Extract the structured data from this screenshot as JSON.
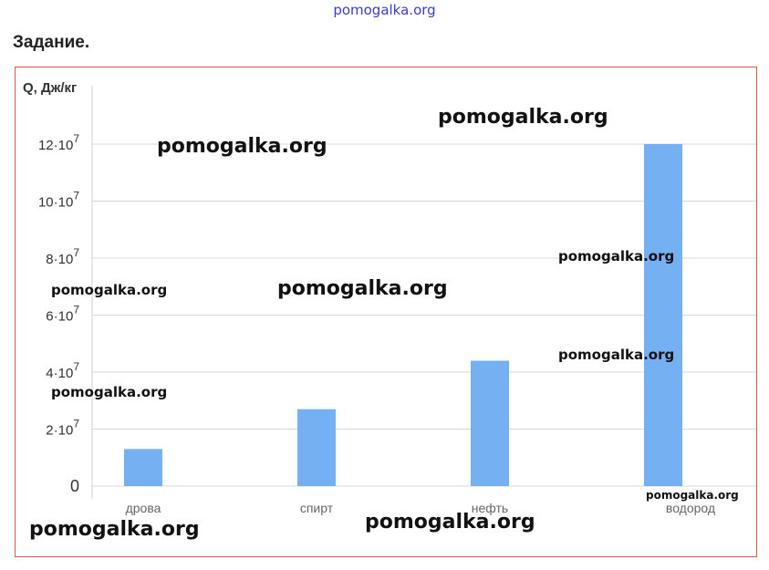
{
  "header": {
    "site_label": "pomogalka.org",
    "task_title": "Задание."
  },
  "watermarks": [
    "pomogalka.org",
    "pomogalka.org",
    "pomogalka.org",
    "pomogalka.org",
    "pomogalka.org",
    "pomogalka.org",
    "pomogalka.org",
    "pomogalka.org",
    "pomogalka.org",
    "pomogalka.org"
  ],
  "colors": {
    "bar": "#74b0f2",
    "frame": "#d9534f",
    "grid": "#d8d8d8",
    "watermark_top": "#3b3bd6"
  },
  "chart_data": {
    "type": "bar",
    "ylabel": "Q, Дж/кг",
    "categories": [
      "дрова",
      "спирт",
      "нефть",
      "водород"
    ],
    "values": [
      13000000,
      27000000,
      44000000,
      120000000
    ],
    "ylim": [
      0,
      140000000
    ],
    "yticks": [
      0,
      20000000,
      40000000,
      60000000,
      80000000,
      100000000,
      120000000
    ],
    "ytick_labels": [
      {
        "base": "0",
        "exp": ""
      },
      {
        "base": "2·10",
        "exp": "7"
      },
      {
        "base": "4·10",
        "exp": "7"
      },
      {
        "base": "6·10",
        "exp": "7"
      },
      {
        "base": "8·10",
        "exp": "7"
      },
      {
        "base": "10·10",
        "exp": "7"
      },
      {
        "base": "12·10",
        "exp": "7"
      }
    ],
    "grid": true
  }
}
